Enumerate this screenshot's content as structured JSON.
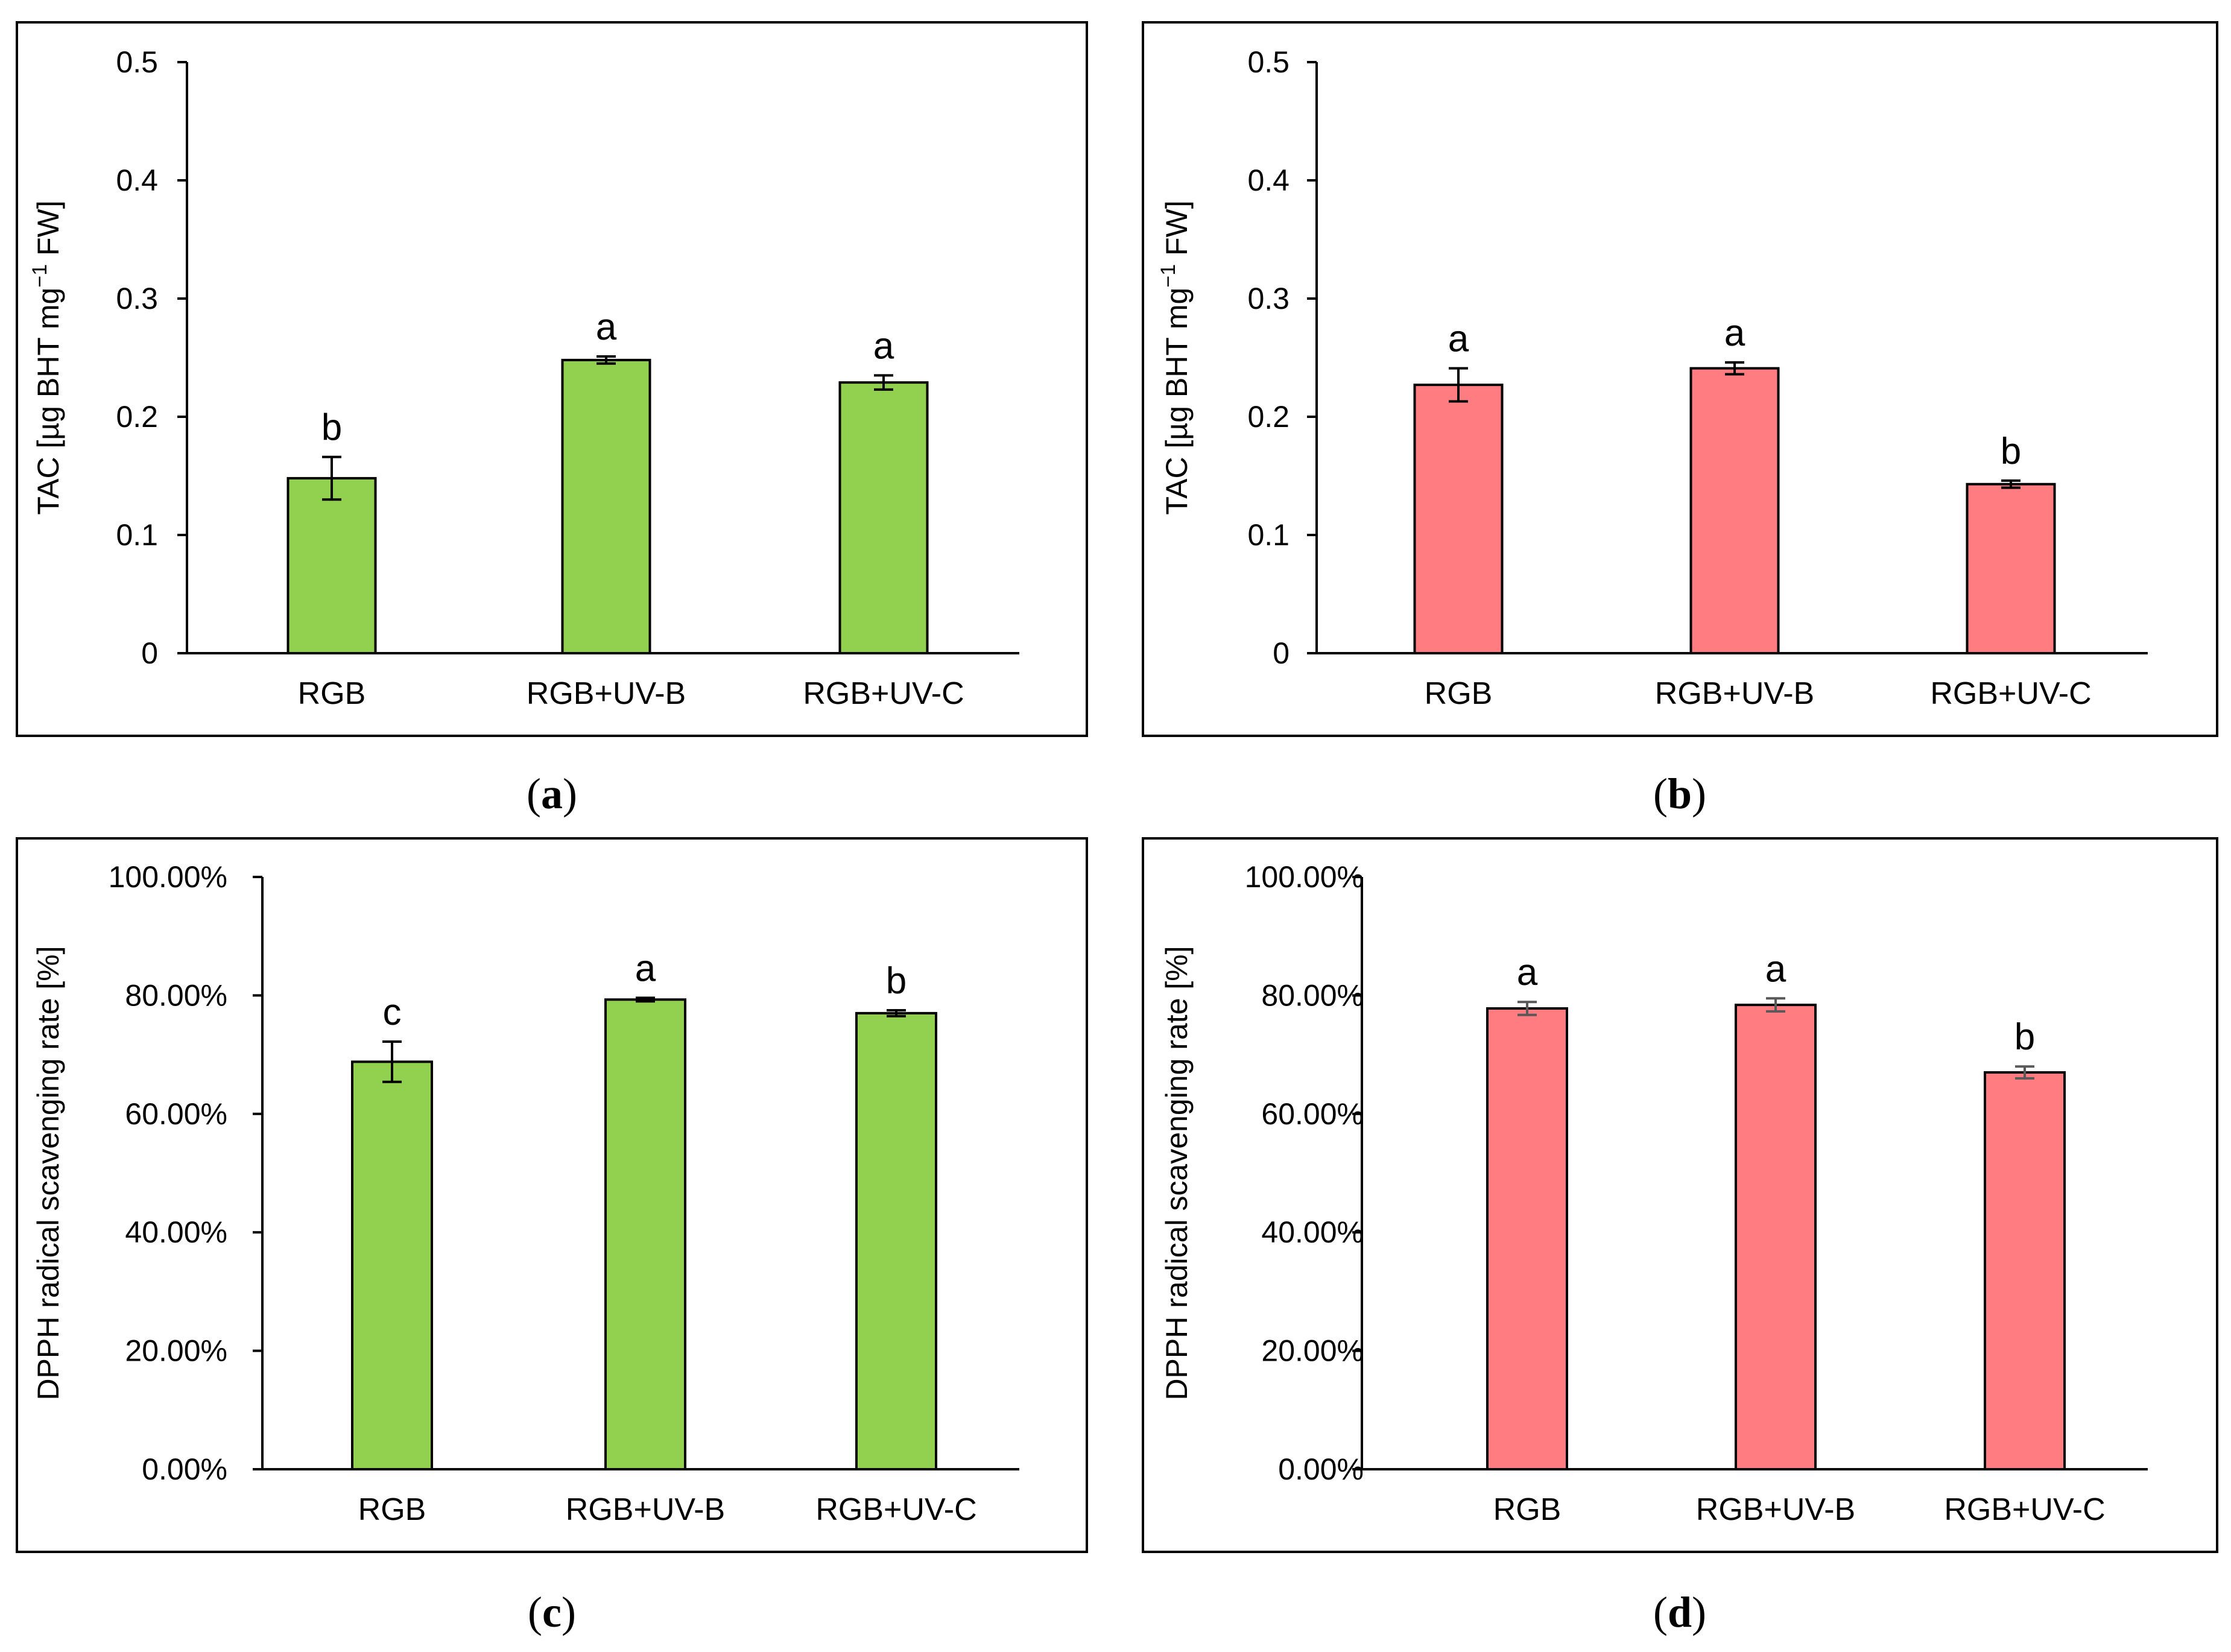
{
  "figure": {
    "colors": {
      "green": "#92d050",
      "red": "#ff7c80",
      "axis": "#000000",
      "error_dark": "#000000",
      "error_grey": "#595959"
    }
  },
  "chart_data": [
    {
      "type": "bar",
      "panel": "a",
      "caption_letter": "a",
      "ylabel_prefix": "TAC [µg BHT mg",
      "ylabel_sup": "−1",
      "ylabel_suffix": " FW]",
      "categories": [
        "RGB",
        "RGB+UV-B",
        "RGB+UV-C"
      ],
      "values": [
        0.148,
        0.248,
        0.229
      ],
      "errors": [
        0.018,
        0.003,
        0.006
      ],
      "significance": [
        "b",
        "a",
        "a"
      ],
      "ylim": [
        0,
        0.5
      ],
      "yticks": [
        0,
        0.1,
        0.2,
        0.3,
        0.4,
        0.5
      ],
      "ytick_labels": [
        "0",
        "0.1",
        "0.2",
        "0.3",
        "0.4",
        "0.5"
      ],
      "bar_color": "#92d050",
      "error_color": "#000000"
    },
    {
      "type": "bar",
      "panel": "b",
      "caption_letter": "b",
      "ylabel_prefix": "TAC [µg BHT mg",
      "ylabel_sup": "−1",
      "ylabel_suffix": " FW]",
      "categories": [
        "RGB",
        "RGB+UV-B",
        "RGB+UV-C"
      ],
      "values": [
        0.227,
        0.241,
        0.143
      ],
      "errors": [
        0.014,
        0.005,
        0.003
      ],
      "significance": [
        "a",
        "a",
        "b"
      ],
      "ylim": [
        0,
        0.5
      ],
      "yticks": [
        0,
        0.1,
        0.2,
        0.3,
        0.4,
        0.5
      ],
      "ytick_labels": [
        "0",
        "0.1",
        "0.2",
        "0.3",
        "0.4",
        "0.5"
      ],
      "bar_color": "#ff7c80",
      "error_color": "#000000"
    },
    {
      "type": "bar",
      "panel": "c",
      "caption_letter": "c",
      "ylabel_prefix": "DPPH radical scavenging rate [%]",
      "ylabel_sup": "",
      "ylabel_suffix": "",
      "categories": [
        "RGB",
        "RGB+UV-B",
        "RGB+UV-C"
      ],
      "values": [
        68.8,
        79.3,
        77.0
      ],
      "errors": [
        3.4,
        0.3,
        0.5
      ],
      "significance": [
        "c",
        "a",
        "b"
      ],
      "ylim": [
        0,
        100
      ],
      "yticks": [
        0,
        20,
        40,
        60,
        80,
        100
      ],
      "ytick_labels": [
        "0.00%",
        "20.00%",
        "40.00%",
        "60.00%",
        "80.00%",
        "100.00%"
      ],
      "bar_color": "#92d050",
      "error_color": "#000000"
    },
    {
      "type": "bar",
      "panel": "d",
      "caption_letter": "d",
      "ylabel_prefix": "DPPH radical scavenging rate [%]",
      "ylabel_sup": "",
      "ylabel_suffix": "",
      "categories": [
        "RGB",
        "RGB+UV-B",
        "RGB+UV-C"
      ],
      "values": [
        77.8,
        78.4,
        67.0
      ],
      "errors": [
        1.1,
        1.1,
        1.0
      ],
      "significance": [
        "a",
        "a",
        "b"
      ],
      "ylim": [
        0,
        100
      ],
      "yticks": [
        0,
        20,
        40,
        60,
        80,
        100
      ],
      "ytick_labels": [
        "0.00%",
        "20.00%",
        "40.00%",
        "60.00%",
        "80.00%",
        "100.00%"
      ],
      "bar_color": "#ff7c80",
      "error_color": "#595959"
    }
  ]
}
